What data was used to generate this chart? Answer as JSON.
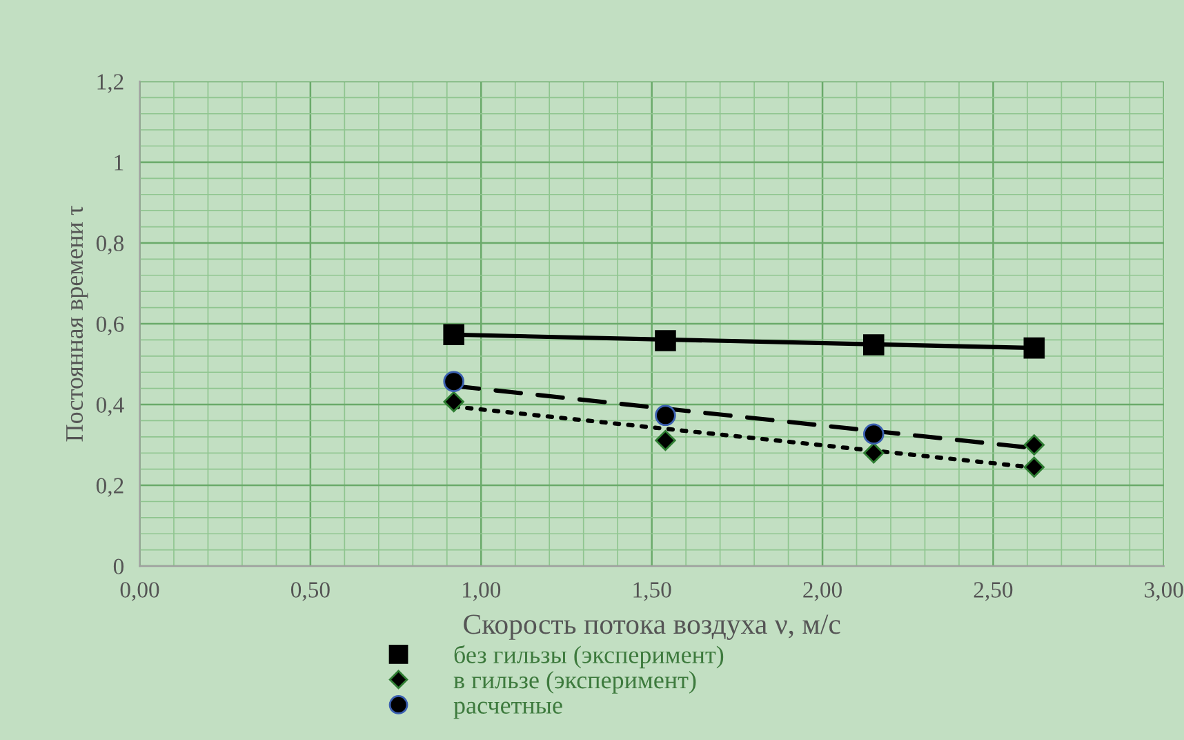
{
  "chart_data": {
    "type": "scatter",
    "xlabel": "Скорость потока воздуха ν, м/с",
    "ylabel": "Постоянная времени τ",
    "xlim": [
      0,
      3
    ],
    "ylim": [
      0,
      1.2
    ],
    "xticks": [
      {
        "value": 0,
        "label": "0,00"
      },
      {
        "value": 0.1,
        "label": null
      },
      {
        "value": 0.2,
        "label": null
      },
      {
        "value": 0.3,
        "label": null
      },
      {
        "value": 0.4,
        "label": null
      },
      {
        "value": 0.5,
        "label": "0,50"
      },
      {
        "value": 0.6,
        "label": null
      },
      {
        "value": 0.7,
        "label": null
      },
      {
        "value": 0.8,
        "label": null
      },
      {
        "value": 0.9,
        "label": null
      },
      {
        "value": 1,
        "label": "1,00"
      },
      {
        "value": 1.1,
        "label": null
      },
      {
        "value": 1.2,
        "label": null
      },
      {
        "value": 1.3,
        "label": null
      },
      {
        "value": 1.4,
        "label": null
      },
      {
        "value": 1.5,
        "label": "1,50"
      },
      {
        "value": 1.6,
        "label": null
      },
      {
        "value": 1.7,
        "label": null
      },
      {
        "value": 1.8,
        "label": null
      },
      {
        "value": 1.9,
        "label": null
      },
      {
        "value": 2,
        "label": "2,00"
      },
      {
        "value": 2.1,
        "label": null
      },
      {
        "value": 2.2,
        "label": null
      },
      {
        "value": 2.3,
        "label": null
      },
      {
        "value": 2.4,
        "label": null
      },
      {
        "value": 2.5,
        "label": "2,50"
      },
      {
        "value": 2.6,
        "label": null
      },
      {
        "value": 2.7,
        "label": null
      },
      {
        "value": 2.8,
        "label": null
      },
      {
        "value": 2.9,
        "label": null
      },
      {
        "value": 3,
        "label": "3,00"
      }
    ],
    "yticks": [
      0,
      {
        "value": 0.04,
        "label": null
      },
      {
        "value": 0.08,
        "label": null
      },
      {
        "value": 0.12,
        "label": null
      },
      {
        "value": 0.16,
        "label": null
      },
      {
        "value": 0.2,
        "label": "0,2"
      },
      {
        "value": 0.24,
        "label": null
      },
      {
        "value": 0.28,
        "label": null
      },
      {
        "value": 0.32,
        "label": null
      },
      {
        "value": 0.36,
        "label": null
      },
      {
        "value": 0.4,
        "label": "0,4"
      },
      {
        "value": 0.44,
        "label": null
      },
      {
        "value": 0.48,
        "label": null
      },
      {
        "value": 0.52,
        "label": null
      },
      {
        "value": 0.56,
        "label": null
      },
      {
        "value": 0.6,
        "label": "0,6"
      },
      {
        "value": 0.64,
        "label": null
      },
      {
        "value": 0.68,
        "label": null
      },
      {
        "value": 0.72,
        "label": null
      },
      {
        "value": 0.76,
        "label": null
      },
      {
        "value": 0.8,
        "label": "0,8"
      },
      {
        "value": 0.84,
        "label": null
      },
      {
        "value": 0.88,
        "label": null
      },
      {
        "value": 0.92,
        "label": null
      },
      {
        "value": 0.96,
        "label": null
      },
      1,
      {
        "value": 1.04,
        "label": null
      },
      {
        "value": 1.08,
        "label": null
      },
      {
        "value": 1.12,
        "label": null
      },
      {
        "value": 1.16,
        "label": null
      },
      {
        "value": 1.2,
        "label": "1,2"
      }
    ],
    "grid": true,
    "legend": "bottom",
    "series": [
      {
        "name": "без гильзы (эксперимент)",
        "color": "#000000",
        "marker": "square",
        "x": [
          0.92,
          1.54,
          2.15,
          2.62
        ],
        "values": [
          0.573,
          0.558,
          0.548,
          0.54
        ]
      },
      {
        "name": "в гильзе (эксперимент)",
        "color": "#000000",
        "marker": "diamond",
        "x": [
          0.92,
          1.54,
          2.15,
          2.62,
          2.62
        ],
        "values": [
          0.407,
          0.311,
          0.28,
          0.245,
          0.3
        ]
      },
      {
        "name": "расчетные",
        "color": "#000000",
        "marker": "circle",
        "x": [
          0.92,
          1.54,
          2.15
        ],
        "values": [
          0.457,
          0.373,
          0.327
        ]
      },
      {
        "type": "line",
        "color": "#000000",
        "marker": "none",
        "line_style": "solid",
        "x": [
          0.92,
          2.62
        ],
        "values": [
          0.573,
          0.54
        ]
      },
      {
        "type": "line",
        "color": "#000000",
        "marker": "none",
        "line_style": "dashed",
        "x": [
          0.92,
          2.62
        ],
        "values": [
          0.446,
          0.292
        ]
      },
      {
        "type": "line",
        "color": "#000000",
        "marker": "none",
        "line_style": "dotted",
        "x": [
          0.92,
          2.62
        ],
        "values": [
          0.395,
          0.244
        ]
      }
    ]
  }
}
